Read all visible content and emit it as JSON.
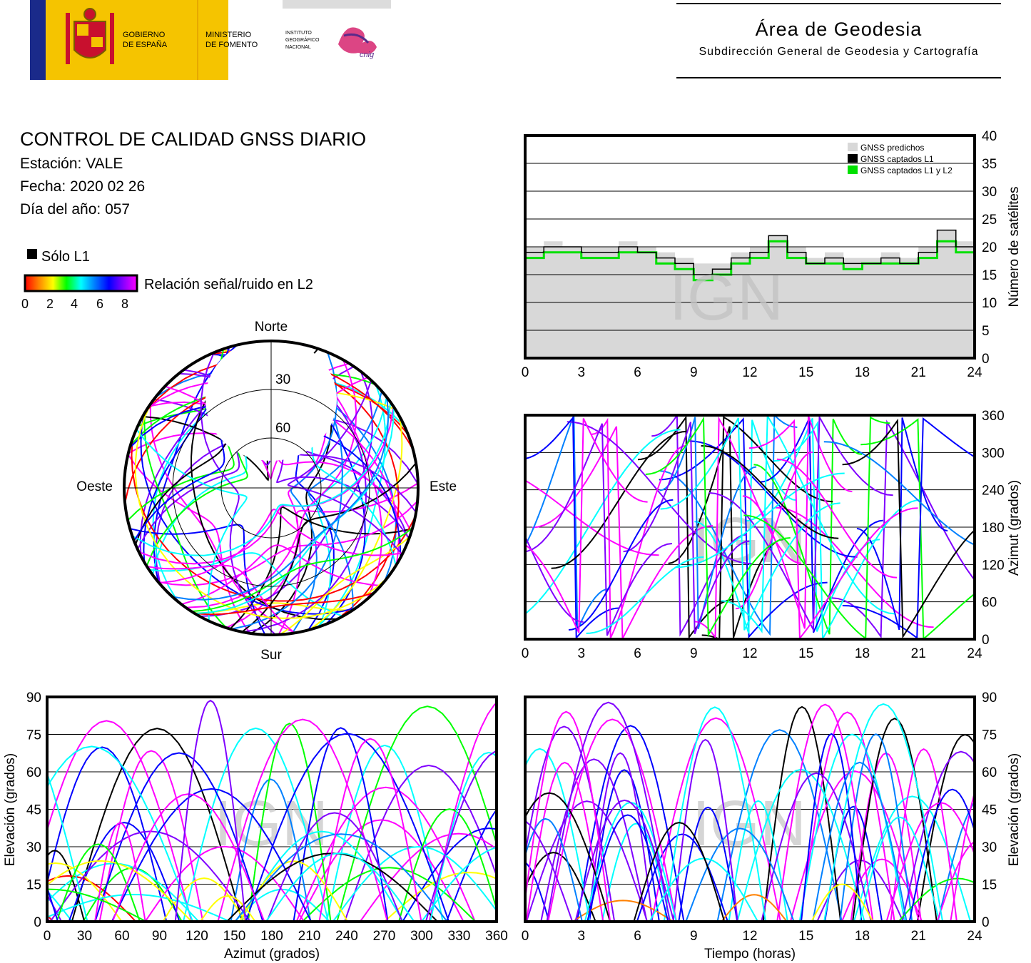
{
  "header": {
    "gov_line1": "GOBIERNO",
    "gov_line2": "DE ESPAÑA",
    "min_line1": "MINISTERIO",
    "min_line2": "DE FOMENTO",
    "ign_line1": "INSTITUTO",
    "ign_line2": "GEOGRÁFICO",
    "ign_line3": "NACIONAL",
    "cnig": "cnig",
    "area_title": "Área de Geodesia",
    "area_subtitle": "Subdirección General de Geodesia y Cartografía"
  },
  "report": {
    "title": "CONTROL DE CALIDAD GNSS DIARIO",
    "station": "Estación: VALE",
    "date": "Fecha: 2020 02 26",
    "doy": "Día del año: 057"
  },
  "legend": {
    "only_l1": "Sólo L1",
    "snr_label": "Relación señal/ruido en L2",
    "snr_ticks": [
      "0",
      "2",
      "4",
      "6",
      "8"
    ]
  },
  "watermark": "IGN",
  "colors": {
    "predicted": "#d8d8d8",
    "l1": "#000000",
    "l1l2": "#00e000",
    "snr_scale": [
      "#ff0000",
      "#ff8000",
      "#ffff00",
      "#00ff00",
      "#00ffff",
      "#0080ff",
      "#0000ff",
      "#8000ff",
      "#ff00ff"
    ]
  },
  "chart_data": [
    {
      "id": "satellites",
      "type": "area",
      "xlabel": "",
      "ylabel": "Número de satélites",
      "xlim": [
        0,
        24
      ],
      "ylim": [
        0,
        40
      ],
      "xticks": [
        "0",
        "3",
        "6",
        "9",
        "12",
        "15",
        "18",
        "21",
        "24"
      ],
      "yticks": [
        "0",
        "5",
        "10",
        "15",
        "20",
        "25",
        "30",
        "35",
        "40"
      ],
      "grid": true,
      "legend_position": "top-right",
      "legend": [
        "GNSS predichos",
        "GNSS captados L1",
        "GNSS captados L1 y L2"
      ],
      "x": [
        0,
        1,
        2,
        3,
        4,
        5,
        6,
        7,
        8,
        9,
        10,
        11,
        12,
        13,
        14,
        15,
        16,
        17,
        18,
        19,
        20,
        21,
        22,
        23,
        24
      ],
      "series": [
        {
          "name": "GNSS predichos",
          "values": [
            20,
            21,
            20,
            20,
            20,
            21,
            20,
            19,
            18,
            17,
            17,
            19,
            20,
            22,
            20,
            18,
            19,
            18,
            18,
            19,
            18,
            20,
            23,
            21,
            19
          ]
        },
        {
          "name": "GNSS captados L1",
          "values": [
            19,
            20,
            20,
            19,
            19,
            20,
            19,
            18,
            17,
            15,
            16,
            18,
            19,
            22,
            19,
            17,
            18,
            17,
            17,
            18,
            17,
            19,
            23,
            20,
            18
          ]
        },
        {
          "name": "GNSS captados L1 y L2",
          "values": [
            18,
            19,
            19,
            18,
            18,
            19,
            19,
            17,
            16,
            14,
            15,
            17,
            18,
            21,
            18,
            17,
            17,
            16,
            17,
            17,
            17,
            18,
            21,
            19,
            17
          ]
        }
      ]
    },
    {
      "id": "skyplot",
      "type": "scatter",
      "title": "",
      "directions": {
        "north": "Norte",
        "south": "Sur",
        "east": "Este",
        "west": "Oeste"
      },
      "elevation_rings": [
        "30",
        "60"
      ]
    },
    {
      "id": "azimuth_time",
      "type": "scatter",
      "xlabel": "",
      "ylabel": "Azimut (grados)",
      "xlim": [
        0,
        24
      ],
      "ylim": [
        0,
        360
      ],
      "xticks": [
        "0",
        "3",
        "6",
        "9",
        "12",
        "15",
        "18",
        "21",
        "24"
      ],
      "yticks": [
        "0",
        "60",
        "120",
        "180",
        "240",
        "300",
        "360"
      ],
      "grid": true
    },
    {
      "id": "elevation_azimuth",
      "type": "scatter",
      "xlabel": "Azimut (grados)",
      "ylabel": "Elevación (grados)",
      "xlim": [
        0,
        360
      ],
      "ylim": [
        0,
        90
      ],
      "xticks": [
        "0",
        "30",
        "60",
        "90",
        "120",
        "150",
        "180",
        "210",
        "240",
        "270",
        "300",
        "330",
        "360"
      ],
      "yticks": [
        "0",
        "15",
        "30",
        "45",
        "60",
        "75",
        "90"
      ],
      "grid": true
    },
    {
      "id": "elevation_time",
      "type": "scatter",
      "xlabel": "Tiempo (horas)",
      "ylabel": "Elevación (grados)",
      "xlim": [
        0,
        24
      ],
      "ylim": [
        0,
        90
      ],
      "xticks": [
        "0",
        "3",
        "6",
        "9",
        "12",
        "15",
        "18",
        "21",
        "24"
      ],
      "yticks": [
        "0",
        "15",
        "30",
        "45",
        "60",
        "75",
        "90"
      ],
      "grid": true
    }
  ]
}
